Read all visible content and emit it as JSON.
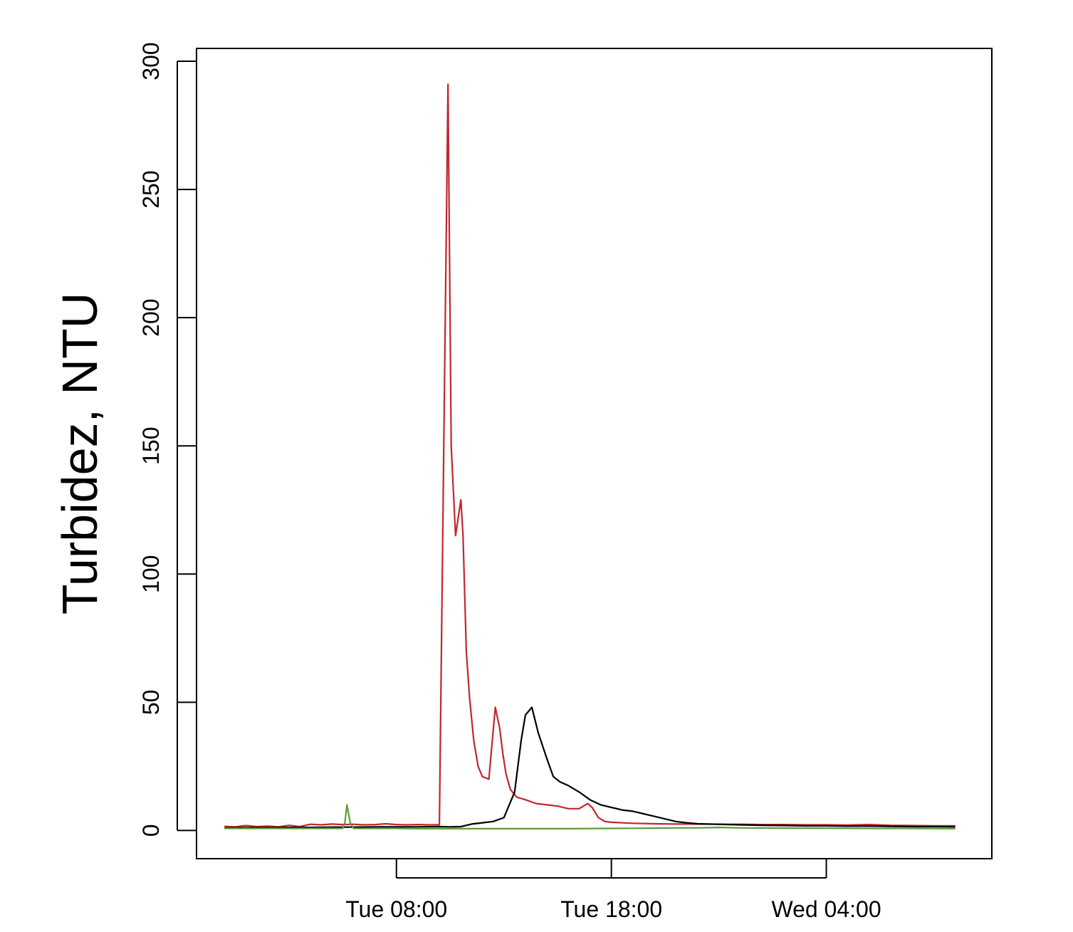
{
  "chart_data": {
    "type": "line",
    "title": "",
    "xlabel": "",
    "ylabel": "Turbidez, NTU",
    "x_unit": "hours",
    "x_reference_note": "x values are clock hours from Tue 00:00",
    "xlim": [
      -1.3,
      35.7
    ],
    "ylim": [
      -11,
      305
    ],
    "x_ticks": [
      {
        "value": 8,
        "label": "Tue 08:00"
      },
      {
        "value": 18,
        "label": "Tue 18:00"
      },
      {
        "value": 28,
        "label": "Wed 04:00"
      }
    ],
    "y_ticks": [
      {
        "value": 0,
        "label": "0"
      },
      {
        "value": 50,
        "label": "50"
      },
      {
        "value": 100,
        "label": "100"
      },
      {
        "value": 150,
        "label": "150"
      },
      {
        "value": 200,
        "label": "200"
      },
      {
        "value": 250,
        "label": "250"
      },
      {
        "value": 300,
        "label": "300"
      }
    ],
    "grid": false,
    "legend": "none",
    "series": [
      {
        "color": "#c0272d",
        "x": [
          0,
          0.5,
          1,
          1.5,
          2,
          2.5,
          3,
          3.5,
          4,
          4.5,
          5,
          5.5,
          6,
          6.5,
          7,
          7.5,
          8,
          8.5,
          9,
          9.5,
          10,
          10.4,
          10.55,
          10.75,
          11,
          11.1,
          11.25,
          11.4,
          11.6,
          11.8,
          12,
          12.3,
          12.6,
          12.8,
          12.95,
          13.1,
          13.3,
          13.6,
          14,
          14.5,
          15,
          15.5,
          16,
          16.5,
          16.9,
          17.1,
          17.4,
          17.7,
          18,
          19,
          20,
          21,
          22,
          23,
          24,
          25,
          26,
          27,
          28,
          29,
          30,
          31,
          32,
          33,
          34
        ],
        "y": [
          1.6,
          1.4,
          1.9,
          1.5,
          1.7,
          1.4,
          2.0,
          1.5,
          2.4,
          2.2,
          2.5,
          2.3,
          2.4,
          2.2,
          2.3,
          2.6,
          2.3,
          2.2,
          2.3,
          2.2,
          2.2,
          291,
          150,
          115,
          129,
          115,
          70,
          52,
          35,
          25,
          21,
          20,
          48,
          40,
          30,
          22,
          16,
          13,
          12,
          10.5,
          10,
          9.5,
          8.5,
          8.5,
          10.5,
          9,
          5,
          3.5,
          3.2,
          2.8,
          2.6,
          2.5,
          2.5,
          2.4,
          2.4,
          2.3,
          2.3,
          2.2,
          2.2,
          2.1,
          2.3,
          2.0,
          1.9,
          1.8,
          1.8
        ]
      },
      {
        "color": "#000000",
        "x": [
          0,
          1,
          2,
          3,
          4,
          5,
          6,
          7,
          8,
          9,
          10,
          10.5,
          11,
          11.5,
          12,
          12.5,
          13,
          13.5,
          13.8,
          14,
          14.3,
          14.6,
          15,
          15.3,
          15.6,
          16,
          16.5,
          17,
          17.5,
          18,
          18.5,
          19,
          19.5,
          20,
          20.5,
          21,
          21.5,
          22,
          23,
          24,
          25,
          26,
          27,
          28,
          29,
          30,
          31,
          32,
          33,
          34
        ],
        "y": [
          1.0,
          1.1,
          1.1,
          1.2,
          1.2,
          1.3,
          1.3,
          1.4,
          1.4,
          1.4,
          1.5,
          1.4,
          1.5,
          2.5,
          3.0,
          3.5,
          5.0,
          15.0,
          35.0,
          45.0,
          48.0,
          38.0,
          28.0,
          21.0,
          19.0,
          17.5,
          15.0,
          12.0,
          10.0,
          9.0,
          8.0,
          7.5,
          6.5,
          5.5,
          4.5,
          3.5,
          3.0,
          2.6,
          2.4,
          2.2,
          2.0,
          1.9,
          1.8,
          1.8,
          1.7,
          1.7,
          1.6,
          1.5,
          1.5,
          1.4
        ]
      },
      {
        "color": "#5c9c3a",
        "x": [
          0,
          1,
          2,
          3,
          4,
          5,
          5.5,
          5.6,
          5.7,
          5.85,
          6,
          6.2,
          7,
          8,
          9,
          10,
          12,
          14,
          16,
          18,
          20,
          21,
          22,
          23,
          24,
          26,
          28,
          30,
          32,
          34
        ],
        "y": [
          0.8,
          0.8,
          0.8,
          0.8,
          0.8,
          0.8,
          0.8,
          3.0,
          10.0,
          3.0,
          0.8,
          0.8,
          0.8,
          0.8,
          0.7,
          0.7,
          0.7,
          0.7,
          0.7,
          0.8,
          0.9,
          1.0,
          1.0,
          1.2,
          1.0,
          0.9,
          0.9,
          0.8,
          0.8,
          0.7
        ]
      }
    ]
  }
}
